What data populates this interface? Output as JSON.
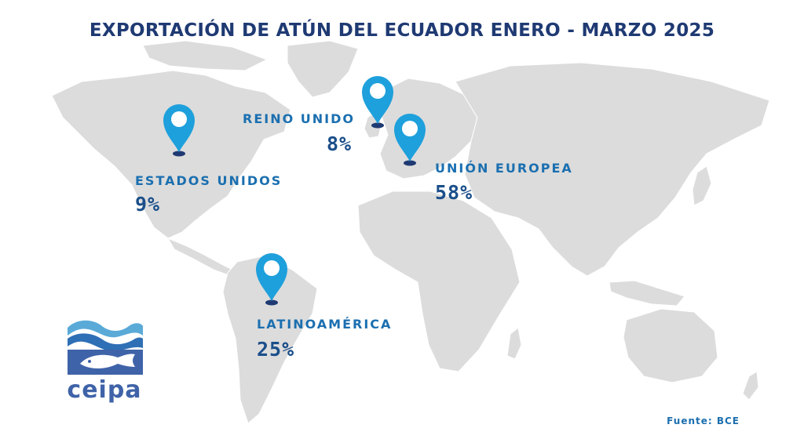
{
  "title": "EXPORTACIÓN DE ATÚN DEL ECUADOR ENERO - MARZO 2025",
  "source": "Fuente: BCE",
  "logo": {
    "text": "ceipa"
  },
  "colors": {
    "title": "#1f3a73",
    "label": "#1b6fb0",
    "value": "#1b4f8a",
    "pin": "#1ea0dc",
    "pin_base": "#1f3a73",
    "map": "#dcdcdc"
  },
  "chart_data": {
    "type": "map",
    "unit": "%",
    "regions": [
      {
        "id": "usa",
        "name": "ESTADOS UNIDOS",
        "value": 9,
        "display": "9%"
      },
      {
        "id": "uk",
        "name": "REINO UNIDO",
        "value": 8,
        "display": "8%"
      },
      {
        "id": "eu",
        "name": "UNIÓN EUROPEA",
        "value": 58,
        "display": "58%"
      },
      {
        "id": "latam",
        "name": "LATINOAMÉRICA",
        "value": 25,
        "display": "25%"
      }
    ]
  }
}
